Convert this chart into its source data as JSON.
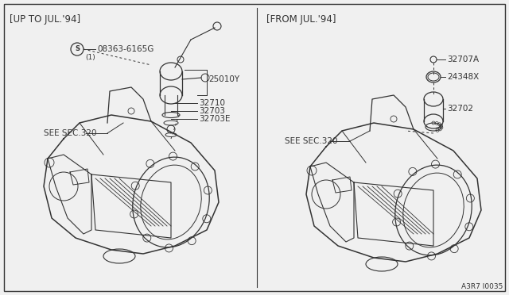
{
  "bg_color": "#f0f0f0",
  "line_color": "#333333",
  "text_color": "#333333",
  "title_left": "[UP TO JUL.'94]",
  "title_right": "[FROM JUL.'94]",
  "footer": "A3R7 I0035",
  "fig_width": 6.4,
  "fig_height": 3.72,
  "dpi": 100
}
